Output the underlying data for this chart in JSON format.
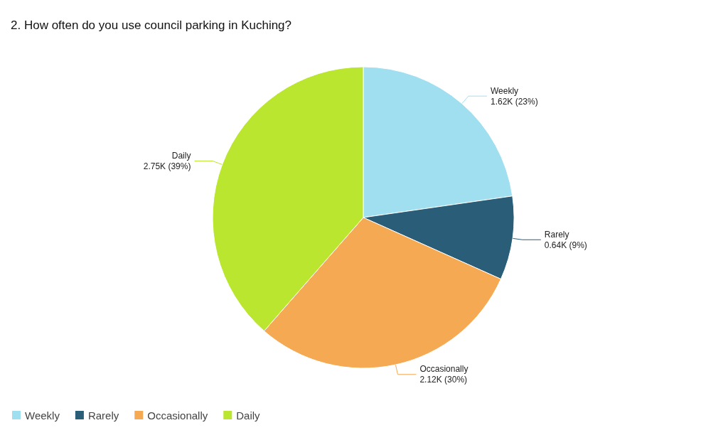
{
  "chart_data": {
    "type": "pie",
    "title": "2. How often do you use council parking in Kuching?",
    "categories": [
      "Weekly",
      "Rarely",
      "Occasionally",
      "Daily"
    ],
    "values": [
      1620,
      640,
      2120,
      2750
    ],
    "value_labels": [
      "1.62K (23%)",
      "0.64K (9%)",
      "2.12K (30%)",
      "2.75K (39%)"
    ],
    "colors": [
      "#a0dff0",
      "#2a5d78",
      "#f5a952",
      "#bae630"
    ],
    "legend": "bottom left"
  }
}
